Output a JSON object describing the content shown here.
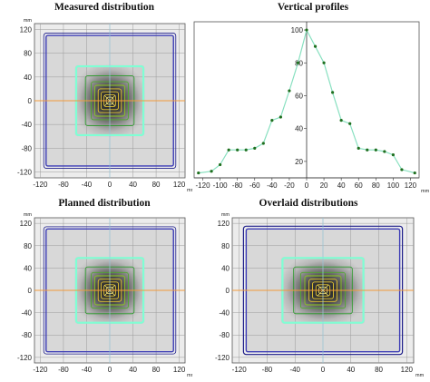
{
  "chart_data": [
    {
      "type": "heatmap",
      "title": "Measured distribution",
      "xlabel": "mm",
      "ylabel": "mm",
      "xlim": [
        -130,
        130
      ],
      "ylim": [
        -130,
        130
      ],
      "x_ticks": [
        "-120",
        "-80",
        "-40",
        "0",
        "40",
        "80",
        "120"
      ],
      "y_ticks": [
        "120",
        "80",
        "40",
        "0",
        "-40",
        "-80",
        "-120"
      ],
      "field_half_width": 110,
      "contour_half_widths": [
        110,
        58,
        42,
        32,
        26,
        20,
        15,
        10,
        6
      ],
      "reference_line": "horizontal at y = 0"
    },
    {
      "type": "scatter",
      "title": "Vertical profiles",
      "xlabel": "mm",
      "ylabel": "",
      "xlim": [
        -130,
        130
      ],
      "ylim": [
        10,
        105
      ],
      "x_ticks": [
        "-120",
        "-100",
        "-80",
        "-60",
        "-40",
        "-20",
        "0",
        "20",
        "40",
        "60",
        "80",
        "100",
        "120"
      ],
      "y_ticks": [
        "100",
        "80",
        "60",
        "40",
        "20"
      ],
      "series": [
        {
          "x": [
            -125,
            -110,
            -100,
            -90,
            -80,
            -70,
            -60,
            -50,
            -40,
            -30,
            -20,
            -10,
            0,
            10,
            20,
            30,
            40,
            50,
            60,
            70,
            80,
            90,
            100,
            110,
            125
          ],
          "y": [
            13,
            14,
            18,
            27,
            27,
            27,
            28,
            31,
            45,
            47,
            63,
            80,
            100,
            90,
            80,
            62,
            45,
            43,
            28,
            27,
            27,
            26,
            24,
            15,
            13
          ]
        }
      ]
    },
    {
      "type": "heatmap",
      "title": "Planned distribution",
      "xlabel": "mm",
      "ylabel": "mm",
      "xlim": [
        -130,
        130
      ],
      "ylim": [
        -130,
        130
      ],
      "x_ticks": [
        "-120",
        "-80",
        "-40",
        "0",
        "40",
        "80",
        "120"
      ],
      "y_ticks": [
        "120",
        "80",
        "40",
        "0",
        "-40",
        "-80",
        "-120"
      ],
      "field_half_width": 110,
      "contour_half_widths": [
        110,
        58,
        42,
        32,
        26,
        20,
        15,
        10,
        6
      ],
      "reference_line": "horizontal at y = 0"
    },
    {
      "type": "heatmap",
      "title": "Overlaid distributions",
      "xlabel": "mm",
      "ylabel": "mm",
      "xlim": [
        -130,
        130
      ],
      "ylim": [
        -130,
        130
      ],
      "x_ticks": [
        "-120",
        "-80",
        "-40",
        "0",
        "40",
        "80",
        "120"
      ],
      "y_ticks": [
        "120",
        "80",
        "40",
        "0",
        "-40",
        "-80",
        "-120"
      ],
      "field_half_width": 110,
      "contour_half_widths": [
        110,
        58,
        42,
        32,
        26,
        20,
        15,
        10,
        6
      ],
      "reference_line": "horizontal at y = 0"
    }
  ],
  "colors": {
    "contour_outer": "#3b3bb5",
    "contour_outer_2": "#1e1e8a",
    "contour_cyan": "#7fffd4",
    "contour_green": "#2a9a2a",
    "contour_yellow": "#e8c830",
    "reference_line": "#f29a3a",
    "grid": "#9a9a9a",
    "profile_line": "#88e0c0",
    "profile_points": "#1f6f1f"
  }
}
